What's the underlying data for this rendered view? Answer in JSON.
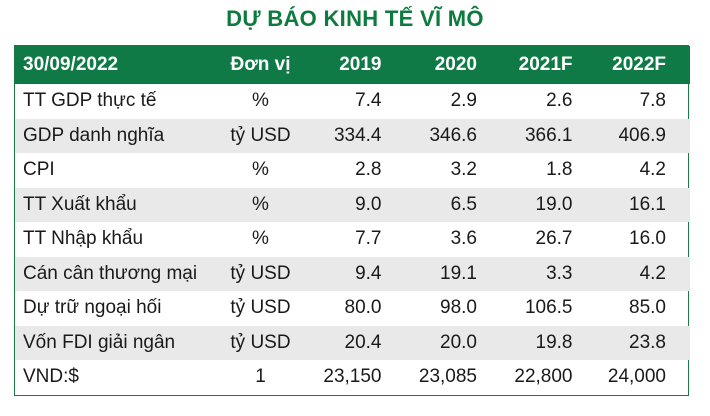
{
  "title": "DỰ BÁO KINH TẾ VĨ MÔ",
  "header": [
    "30/09/2022",
    "Đơn vị",
    "2019",
    "2020",
    "2021F",
    "2022F"
  ],
  "rows": [
    {
      "label": "TT GDP thực tế",
      "unit": "%",
      "values": [
        "7.4",
        "2.9",
        "2.6",
        "7.8"
      ]
    },
    {
      "label": "GDP danh nghĩa",
      "unit": "tỷ USD",
      "values": [
        "334.4",
        "346.6",
        "366.1",
        "406.9"
      ]
    },
    {
      "label": "CPI",
      "unit": "%",
      "values": [
        "2.8",
        "3.2",
        "1.8",
        "4.2"
      ]
    },
    {
      "label": "TT Xuất khẩu",
      "unit": "%",
      "values": [
        "9.0",
        "6.5",
        "19.0",
        "16.1"
      ]
    },
    {
      "label": "TT Nhập khẩu",
      "unit": "%",
      "values": [
        "7.7",
        "3.6",
        "26.7",
        "16.0"
      ]
    },
    {
      "label": "Cán cân thương mại",
      "unit": "tỷ USD",
      "values": [
        "9.4",
        "19.1",
        "3.3",
        "4.2"
      ]
    },
    {
      "label": "Dự trữ ngoại hối",
      "unit": "tỷ USD",
      "values": [
        "80.0",
        "98.0",
        "106.5",
        "85.0"
      ]
    },
    {
      "label": "Vốn FDI giải ngân",
      "unit": "tỷ USD",
      "values": [
        "20.4",
        "20.0",
        "19.8",
        "23.8"
      ]
    },
    {
      "label": "VND:$",
      "unit": "1",
      "values": [
        "23,150",
        "23,085",
        "22,800",
        "24,000"
      ]
    }
  ],
  "colors": {
    "title": "#0d7a3e",
    "header_bg": "#0f7a45",
    "header_text": "#ffffff",
    "alt_row_bg": "#e9e9e9"
  }
}
